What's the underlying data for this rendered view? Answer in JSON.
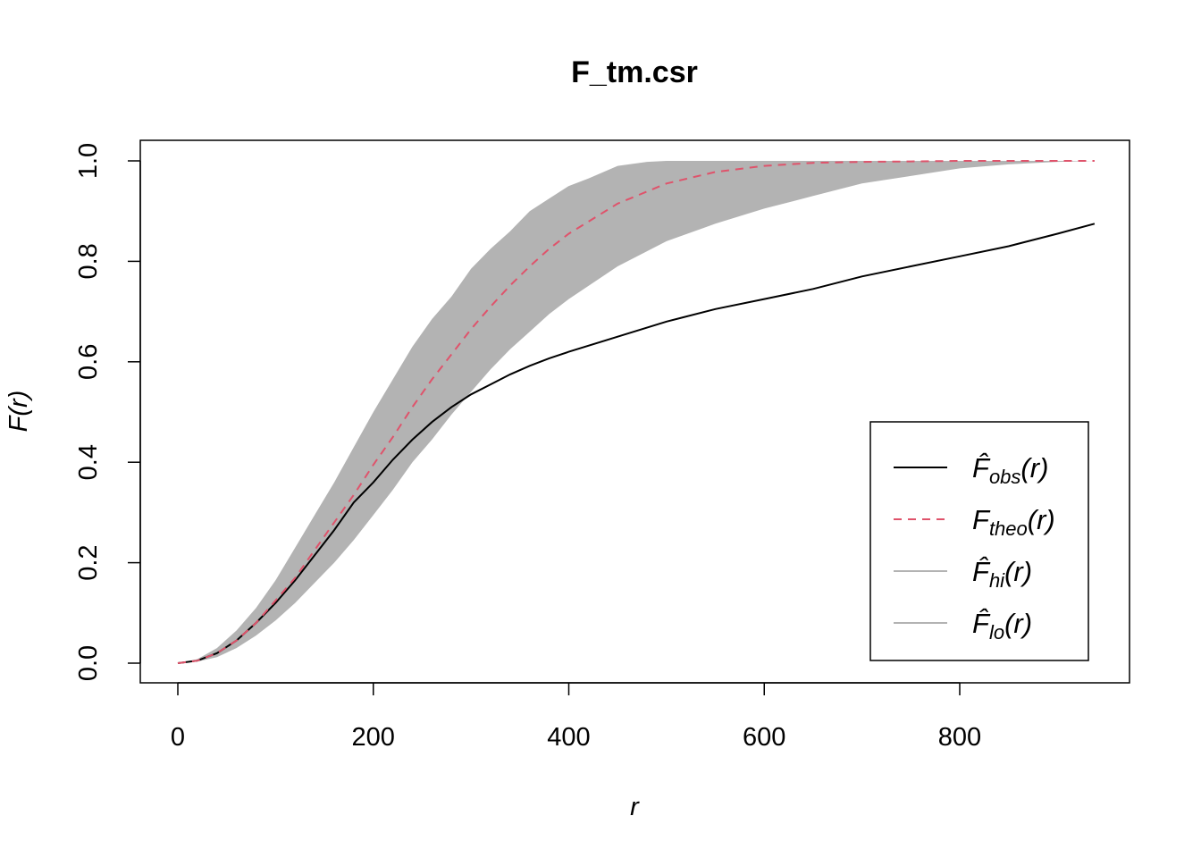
{
  "chart_data": {
    "type": "line",
    "title": "F_tm.csr",
    "xlabel": "r",
    "ylabel": "F(r)",
    "xlim": [
      0,
      940
    ],
    "ylim": [
      0,
      1
    ],
    "x_ticks": [
      "0",
      "200",
      "400",
      "600",
      "800"
    ],
    "y_ticks": [
      "0.0",
      "0.2",
      "0.4",
      "0.6",
      "0.8",
      "1.0"
    ],
    "grid": false,
    "legend_position": "bottom-right",
    "series": [
      {
        "name": "F̂obs(r)",
        "legend_main": "F̂",
        "legend_sub": "obs",
        "legend_tail": "(r)",
        "color": "#000000",
        "dash": "solid",
        "x": [
          0,
          20,
          40,
          60,
          80,
          100,
          120,
          140,
          160,
          180,
          200,
          220,
          240,
          260,
          280,
          300,
          320,
          340,
          360,
          380,
          400,
          450,
          500,
          550,
          600,
          650,
          700,
          750,
          800,
          850,
          900,
          938
        ],
        "y": [
          0,
          0.005,
          0.02,
          0.045,
          0.08,
          0.12,
          0.165,
          0.215,
          0.265,
          0.32,
          0.36,
          0.405,
          0.445,
          0.48,
          0.51,
          0.535,
          0.555,
          0.575,
          0.592,
          0.607,
          0.62,
          0.65,
          0.68,
          0.705,
          0.725,
          0.745,
          0.77,
          0.79,
          0.81,
          0.83,
          0.855,
          0.875
        ]
      },
      {
        "name": "Ftheo(r)",
        "legend_main": "F",
        "legend_sub": "theo",
        "legend_tail": "(r)",
        "color": "#DF536B",
        "dash": "dashed",
        "x": [
          0,
          20,
          40,
          60,
          80,
          100,
          120,
          140,
          160,
          180,
          200,
          220,
          240,
          260,
          280,
          300,
          320,
          340,
          360,
          380,
          400,
          450,
          500,
          550,
          600,
          650,
          700,
          750,
          800,
          850,
          900,
          938
        ],
        "y": [
          0,
          0.005,
          0.02,
          0.045,
          0.08,
          0.125,
          0.17,
          0.225,
          0.28,
          0.335,
          0.395,
          0.45,
          0.51,
          0.565,
          0.615,
          0.665,
          0.71,
          0.752,
          0.79,
          0.825,
          0.855,
          0.915,
          0.955,
          0.978,
          0.99,
          0.996,
          0.998,
          0.999,
          1.0,
          1.0,
          1.0,
          1.0
        ]
      },
      {
        "name": "F̂hi(r)",
        "legend_main": "F̂",
        "legend_sub": "hi",
        "legend_tail": "(r)",
        "color": "#B3B3B3",
        "dash": "solid",
        "x": [
          0,
          20,
          40,
          60,
          80,
          100,
          120,
          140,
          160,
          180,
          200,
          220,
          240,
          260,
          280,
          300,
          320,
          340,
          360,
          380,
          400,
          420,
          450,
          480,
          500,
          550,
          600,
          700,
          800,
          938
        ],
        "y": [
          0,
          0.008,
          0.03,
          0.065,
          0.11,
          0.165,
          0.23,
          0.295,
          0.36,
          0.43,
          0.5,
          0.565,
          0.63,
          0.685,
          0.73,
          0.785,
          0.825,
          0.86,
          0.9,
          0.925,
          0.95,
          0.965,
          0.99,
          0.998,
          1.0,
          1.0,
          1.0,
          1.0,
          1.0,
          1.0
        ]
      },
      {
        "name": "F̂lo(r)",
        "legend_main": "F̂",
        "legend_sub": "lo",
        "legend_tail": "(r)",
        "color": "#B3B3B3",
        "dash": "solid",
        "x": [
          0,
          20,
          40,
          60,
          80,
          100,
          120,
          140,
          160,
          180,
          200,
          220,
          240,
          260,
          280,
          300,
          320,
          340,
          360,
          380,
          400,
          450,
          500,
          550,
          600,
          650,
          700,
          750,
          800,
          850,
          900,
          938
        ],
        "y": [
          0,
          0.003,
          0.012,
          0.03,
          0.055,
          0.085,
          0.12,
          0.16,
          0.2,
          0.245,
          0.295,
          0.345,
          0.4,
          0.445,
          0.495,
          0.54,
          0.585,
          0.625,
          0.66,
          0.695,
          0.725,
          0.79,
          0.84,
          0.875,
          0.905,
          0.93,
          0.955,
          0.97,
          0.985,
          0.993,
          0.998,
          1.0
        ]
      }
    ]
  }
}
